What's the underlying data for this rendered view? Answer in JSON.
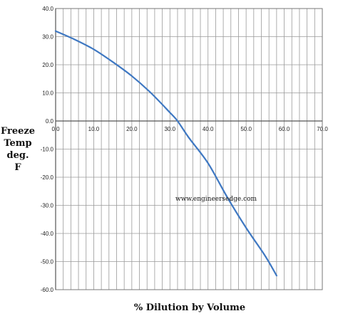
{
  "chart_data": {
    "type": "line",
    "xlabel": "% Dilution by Volume",
    "ylabel_lines": [
      "Freeze",
      "Temp",
      "deg.",
      "F"
    ],
    "annotation": "www.engineersedge.com",
    "xlim": [
      0,
      70
    ],
    "ylim": [
      -60,
      40
    ],
    "x_major_ticks": [
      "0.0",
      "10.0",
      "20.0",
      "30.0",
      "40.0",
      "50.0",
      "60.0",
      "70.0"
    ],
    "y_major_ticks": [
      "40.0",
      "30.0",
      "20.0",
      "10.0",
      "0.0",
      "-10.0",
      "-20.0",
      "-30.0",
      "-40.0",
      "-50.0",
      "-60.0"
    ],
    "x_minor_step": 2,
    "y_minor_step": 10,
    "grid": true,
    "line_color": "#3f78c2",
    "series": [
      {
        "x": [
          0,
          5,
          10,
          15,
          20,
          25,
          30,
          32,
          35,
          40,
          45,
          50,
          55,
          58
        ],
        "y": [
          32,
          29,
          25.5,
          21,
          16,
          10,
          3,
          0,
          -6,
          -15,
          -27,
          -38,
          -48,
          -55
        ]
      }
    ]
  }
}
